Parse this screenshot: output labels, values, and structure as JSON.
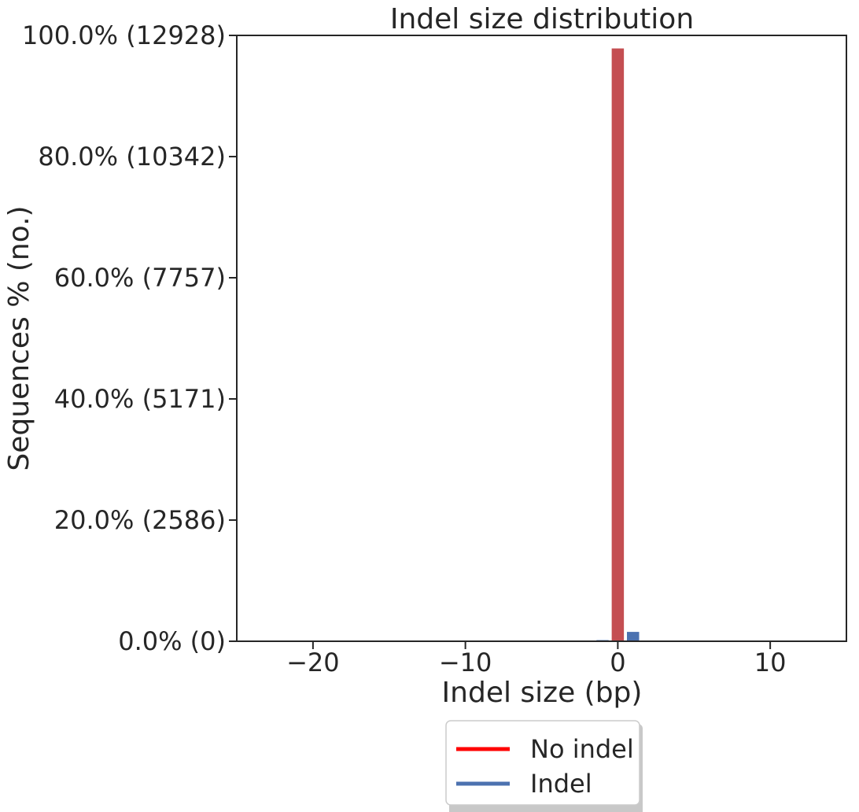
{
  "chart_data": {
    "type": "bar",
    "title": "Indel size distribution",
    "xlabel": "Indel size (bp)",
    "ylabel": "Sequences % (no.)",
    "xlim": [
      -25,
      15
    ],
    "ylim": [
      0,
      12928
    ],
    "x_ticks": [
      {
        "value": -20,
        "label": "−20"
      },
      {
        "value": -10,
        "label": "−10"
      },
      {
        "value": 0,
        "label": "0"
      },
      {
        "value": 10,
        "label": "10"
      }
    ],
    "y_ticks": [
      {
        "value": 0,
        "label": "0.0% (0)"
      },
      {
        "value": 2586,
        "label": "20.0% (2586)"
      },
      {
        "value": 5171,
        "label": "40.0% (5171)"
      },
      {
        "value": 7757,
        "label": "60.0% (7757)"
      },
      {
        "value": 10342,
        "label": "80.0% (10342)"
      },
      {
        "value": 12928,
        "label": "100.0% (12928)"
      }
    ],
    "bar_width": 0.8,
    "series": [
      {
        "name": "No indel",
        "color": "#c44e52",
        "legend_color": "#ff0000",
        "points": [
          {
            "x": 0,
            "y": 12650
          }
        ]
      },
      {
        "name": "Indel",
        "color": "#4c72b0",
        "legend_color": "#4c72b0",
        "points": [
          {
            "x": -2,
            "y": 8
          },
          {
            "x": -1,
            "y": 25
          },
          {
            "x": 1,
            "y": 200
          },
          {
            "x": 2,
            "y": 6
          }
        ]
      }
    ],
    "grid": false,
    "legend_position": "bottom-center (below axes)"
  }
}
